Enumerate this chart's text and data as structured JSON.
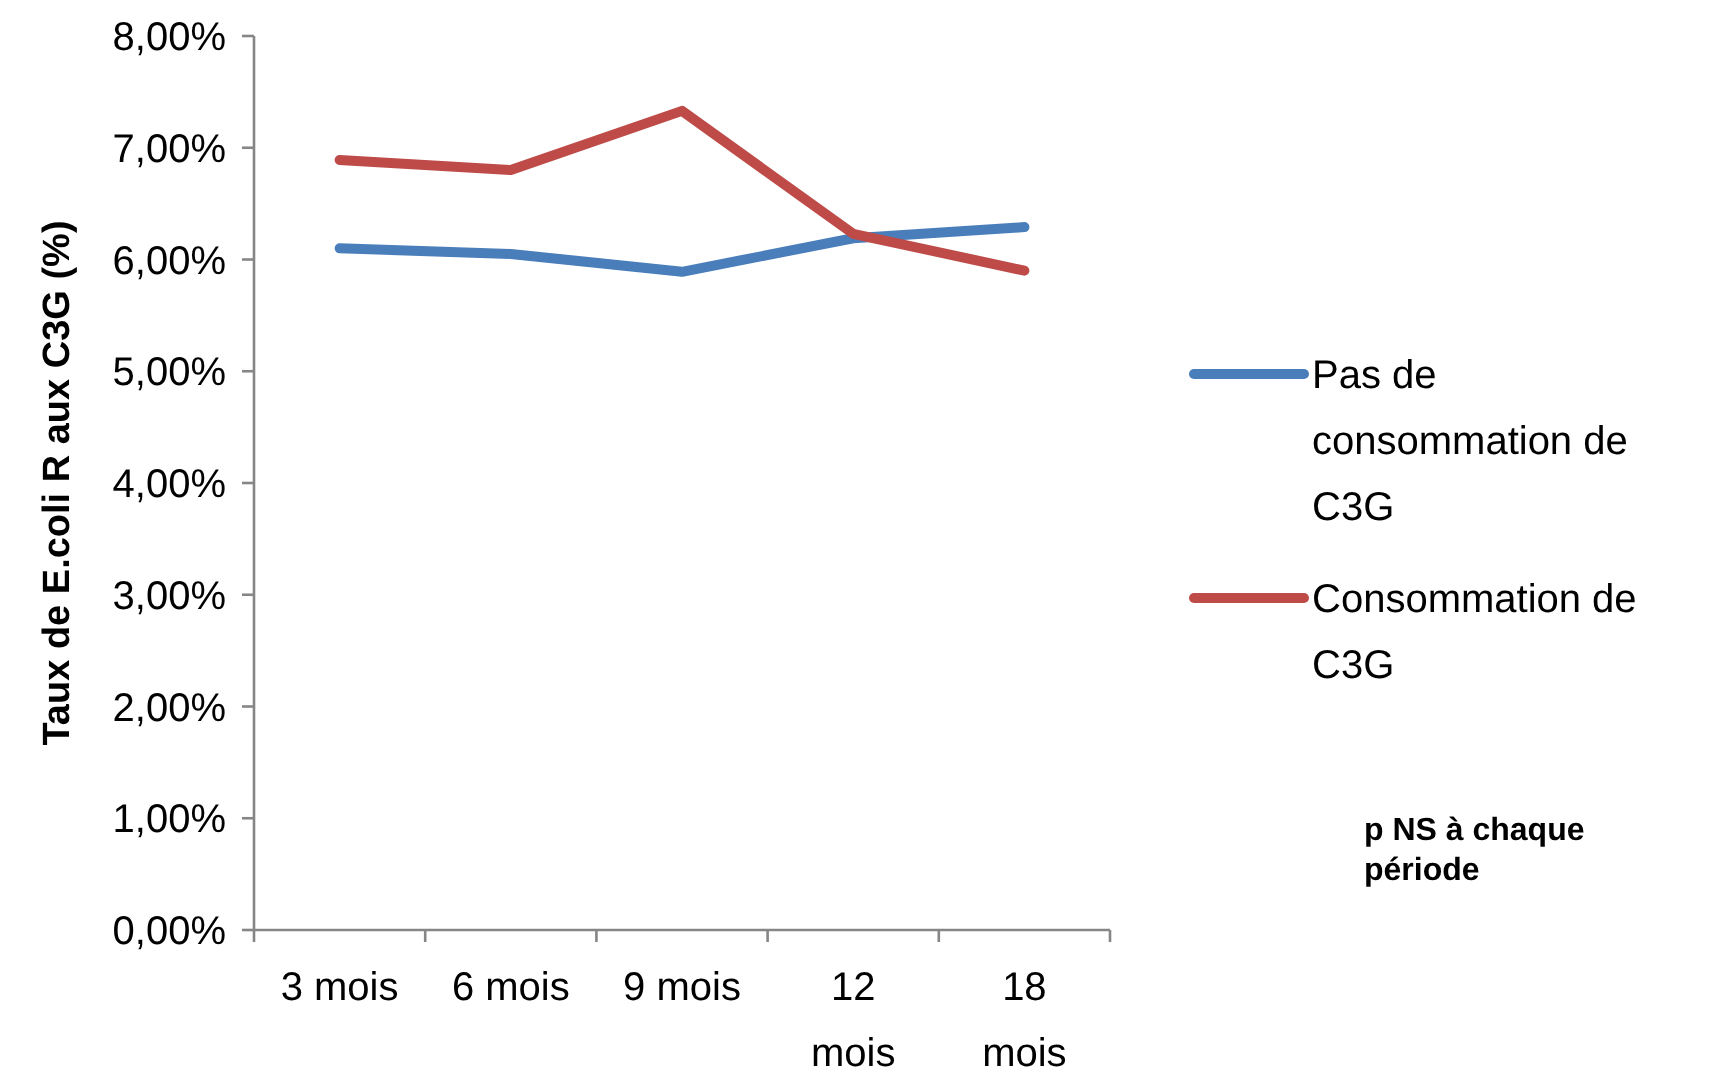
{
  "chart_data": {
    "type": "line",
    "categories": [
      "3 mois",
      "6 mois",
      "9 mois",
      "12 mois",
      "18 mois"
    ],
    "series": [
      {
        "name": "Pas de consommation de C3G",
        "color": "#4a7ebb",
        "values": [
          6.1,
          6.05,
          5.89,
          6.19,
          6.29
        ]
      },
      {
        "name": "Consommation de C3G",
        "color": "#be4b48",
        "values": [
          6.89,
          6.8,
          7.33,
          6.23,
          5.9
        ]
      }
    ],
    "ylabel": "Taux de E.coli R aux C3G (%)",
    "ylim": [
      0,
      8
    ],
    "yticks": [
      {
        "value": 0,
        "label": "0,00%"
      },
      {
        "value": 1,
        "label": "1,00%"
      },
      {
        "value": 2,
        "label": "2,00%"
      },
      {
        "value": 3,
        "label": "3,00%"
      },
      {
        "value": 4,
        "label": "4,00%"
      },
      {
        "value": 5,
        "label": "5,00%"
      },
      {
        "value": 6,
        "label": "6,00%"
      },
      {
        "value": 7,
        "label": "7,00%"
      },
      {
        "value": 8,
        "label": "8,00%"
      }
    ],
    "annotations": [
      "p NS à chaque période"
    ],
    "legend": "right",
    "grid": false,
    "marker": "none",
    "line_style": "solid"
  }
}
